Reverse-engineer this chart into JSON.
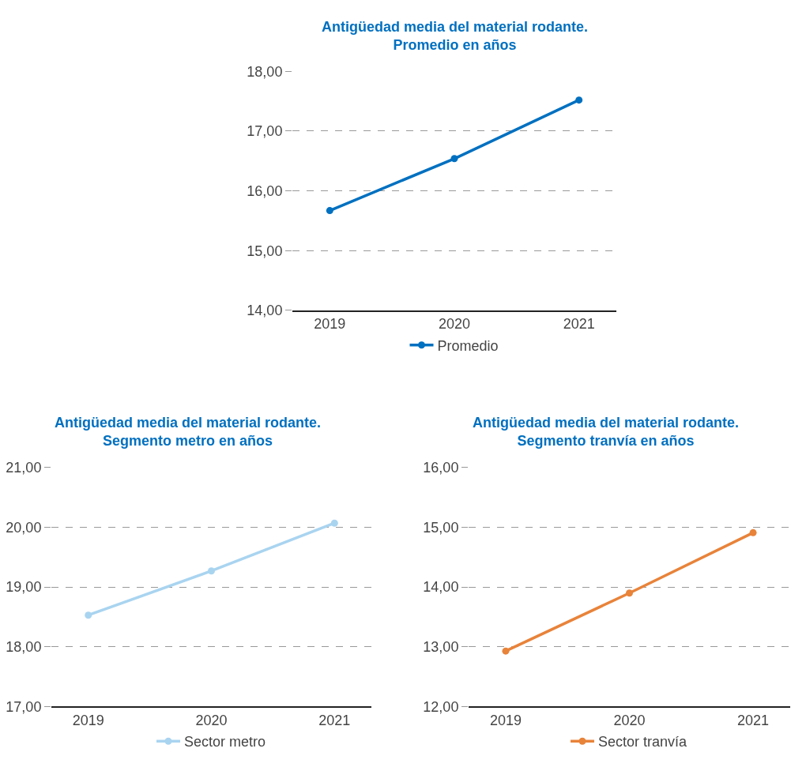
{
  "chart_data": [
    {
      "type": "line",
      "title": "Antigüedad media del material rodante.\nPromedio en años",
      "categories": [
        "2019",
        "2020",
        "2021"
      ],
      "series": [
        {
          "name": "Promedio",
          "color": "#0070c0",
          "values": [
            15.67,
            16.54,
            17.52
          ]
        }
      ],
      "ylim": [
        14,
        18
      ],
      "yticks": [
        {
          "value": 14,
          "label": "14,00"
        },
        {
          "value": 15,
          "label": "15,00"
        },
        {
          "value": 16,
          "label": "16,00"
        },
        {
          "value": 17,
          "label": "17,00"
        },
        {
          "value": 18,
          "label": "18,00"
        }
      ],
      "grid": "y",
      "legend": "bottom",
      "marker": "circle",
      "line_style": "solid"
    },
    {
      "type": "line",
      "title": "Antigüedad media del material rodante.\nSegmento metro en años",
      "categories": [
        "2019",
        "2020",
        "2021"
      ],
      "series": [
        {
          "name": "Sector metro",
          "color": "#a9d4f0",
          "values": [
            18.53,
            19.27,
            20.07
          ]
        }
      ],
      "ylim": [
        17,
        21
      ],
      "yticks": [
        {
          "value": 17,
          "label": "17,00"
        },
        {
          "value": 18,
          "label": "18,00"
        },
        {
          "value": 19,
          "label": "19,00"
        },
        {
          "value": 20,
          "label": "20,00"
        },
        {
          "value": 21,
          "label": "21,00"
        }
      ],
      "grid": "y",
      "legend": "bottom",
      "marker": "circle",
      "line_style": "solid"
    },
    {
      "type": "line",
      "title": "Antigüedad media del material rodante.\nSegmento tranvía en años",
      "categories": [
        "2019",
        "2020",
        "2021"
      ],
      "series": [
        {
          "name": "Sector tranvía",
          "color": "#e8833a",
          "values": [
            12.93,
            13.9,
            14.91
          ]
        }
      ],
      "ylim": [
        12,
        16
      ],
      "yticks": [
        {
          "value": 12,
          "label": "12,00"
        },
        {
          "value": 13,
          "label": "13,00"
        },
        {
          "value": 14,
          "label": "14,00"
        },
        {
          "value": 15,
          "label": "15,00"
        },
        {
          "value": 16,
          "label": "16,00"
        }
      ],
      "grid": "y",
      "legend": "bottom",
      "marker": "circle",
      "line_style": "solid"
    }
  ]
}
